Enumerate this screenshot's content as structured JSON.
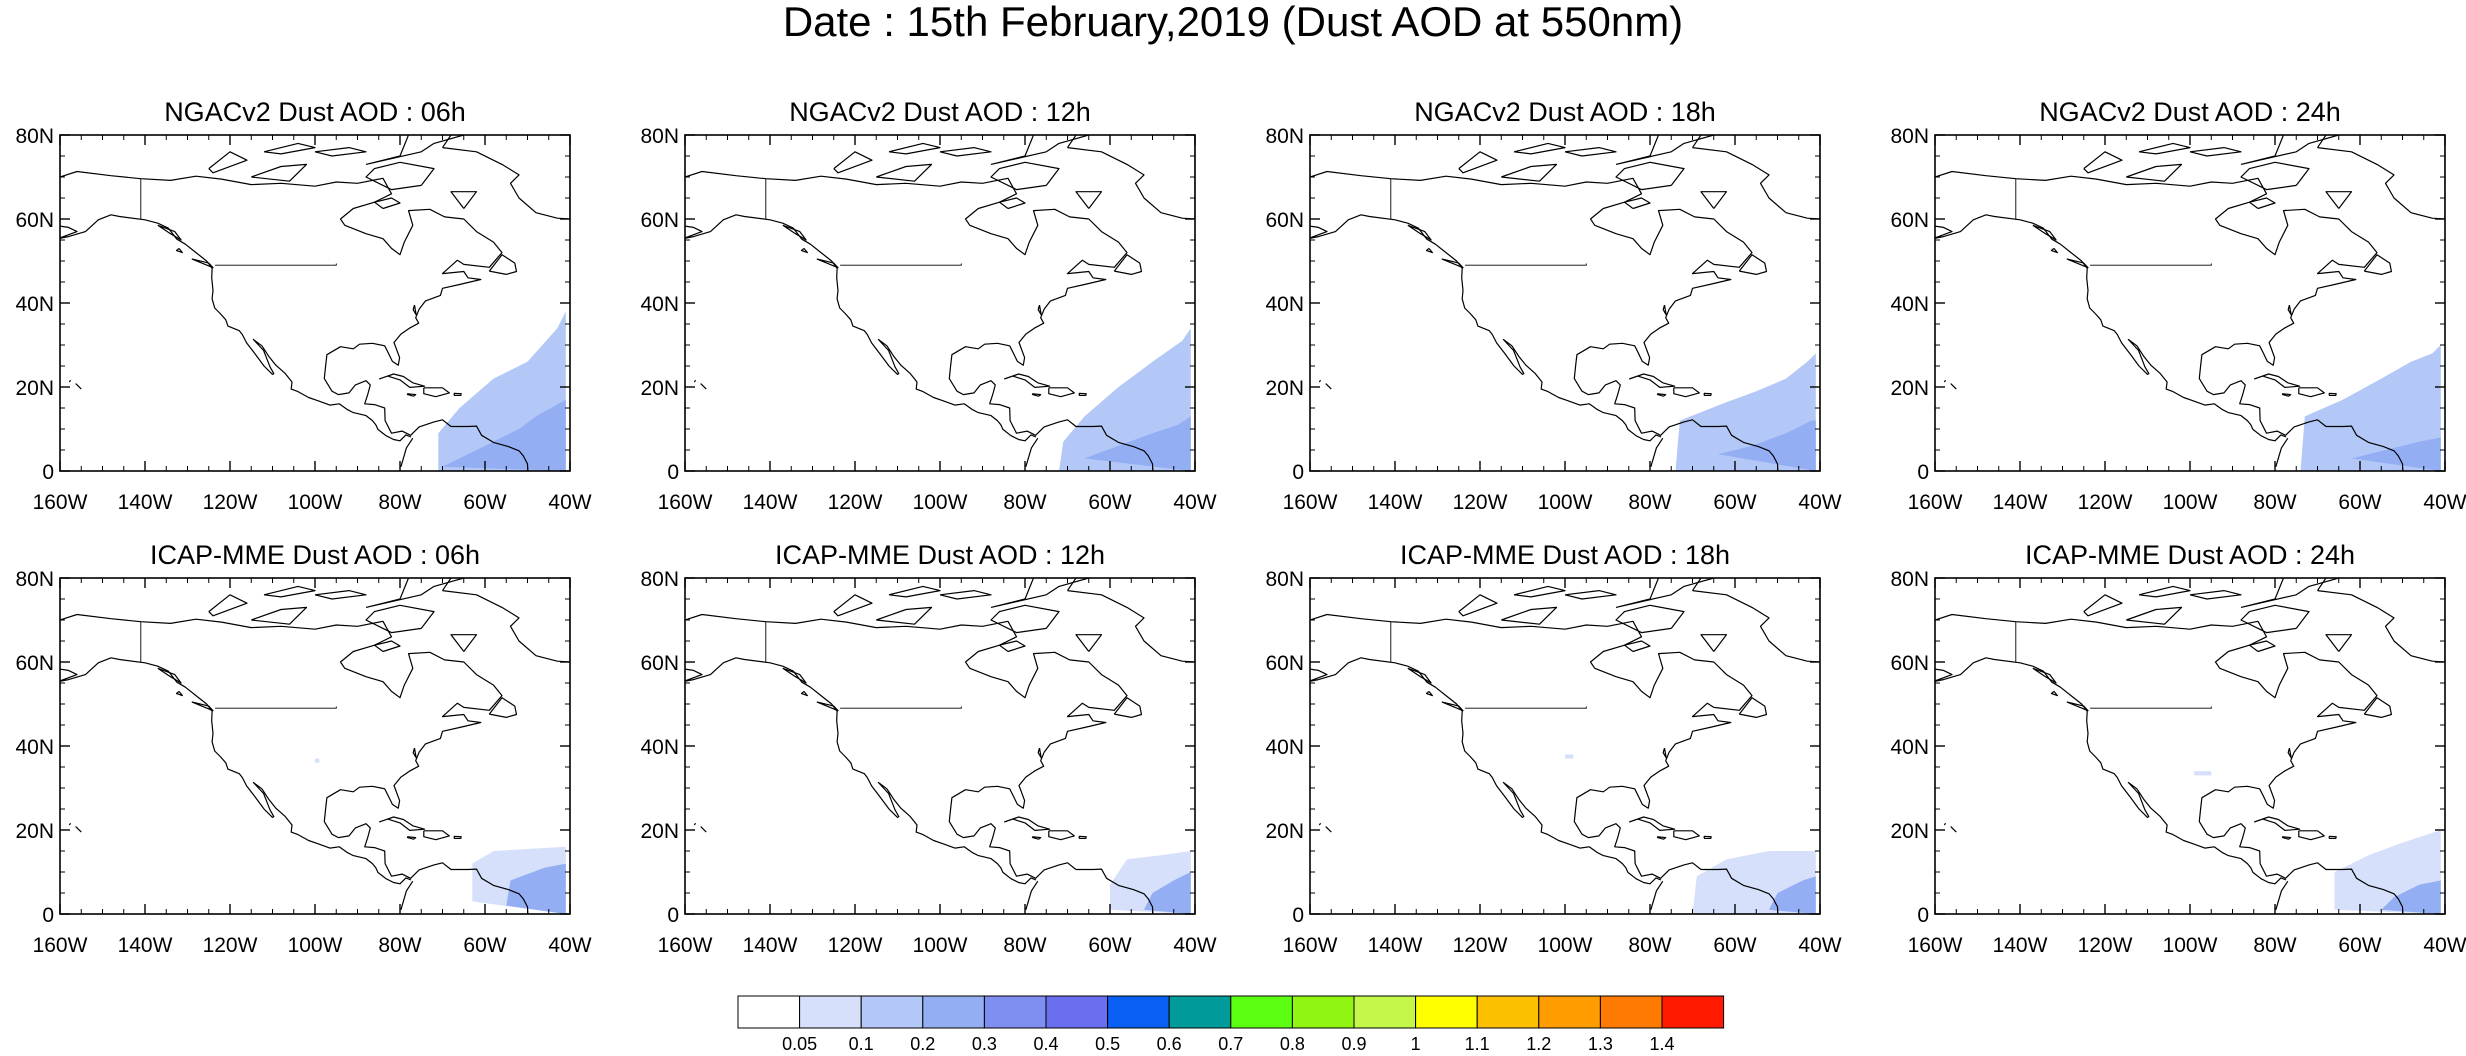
{
  "title": "Date : 15th February,2019 (Dust AOD at 550nm)",
  "colors": {
    "coast": "#000000",
    "frame": "#000000"
  },
  "axes": {
    "lat_ticks": [
      "80N",
      "60N",
      "40N",
      "20N",
      "0"
    ],
    "lon_ticks": [
      "160W",
      "140W",
      "120W",
      "100W",
      "80W",
      "60W",
      "40W"
    ],
    "lon_range": [
      -160,
      -40
    ],
    "lat_range": [
      0,
      80
    ]
  },
  "panels": [
    {
      "title": "NGACv2 Dust AOD : 06h",
      "model": "NGACv2",
      "hour": "06h"
    },
    {
      "title": "NGACv2 Dust AOD : 12h",
      "model": "NGACv2",
      "hour": "12h"
    },
    {
      "title": "NGACv2 Dust AOD : 18h",
      "model": "NGACv2",
      "hour": "18h"
    },
    {
      "title": "NGACv2 Dust AOD : 24h",
      "model": "NGACv2",
      "hour": "24h"
    },
    {
      "title": "ICAP-MME Dust AOD : 06h",
      "model": "ICAP-MME",
      "hour": "06h"
    },
    {
      "title": "ICAP-MME Dust AOD : 12h",
      "model": "ICAP-MME",
      "hour": "12h"
    },
    {
      "title": "ICAP-MME Dust AOD : 18h",
      "model": "ICAP-MME",
      "hour": "18h"
    },
    {
      "title": "ICAP-MME Dust AOD : 24h",
      "model": "ICAP-MME",
      "hour": "24h"
    }
  ],
  "colorbar": {
    "colors": [
      "#ffffff",
      "#d6e0fb",
      "#b4c8f7",
      "#94aef4",
      "#7f8ef1",
      "#6a6ff0",
      "#0a60f5",
      "#009a9a",
      "#5cff12",
      "#92f511",
      "#c4f74a",
      "#ffff00",
      "#fcc000",
      "#ff9d00",
      "#ff7a00",
      "#ff1a00"
    ],
    "labels": [
      "0.05",
      "0.1",
      "0.2",
      "0.3",
      "0.4",
      "0.5",
      "0.6",
      "0.7",
      "0.8",
      "0.9",
      "1",
      "1.1",
      "1.2",
      "1.3",
      "1.4"
    ]
  }
}
